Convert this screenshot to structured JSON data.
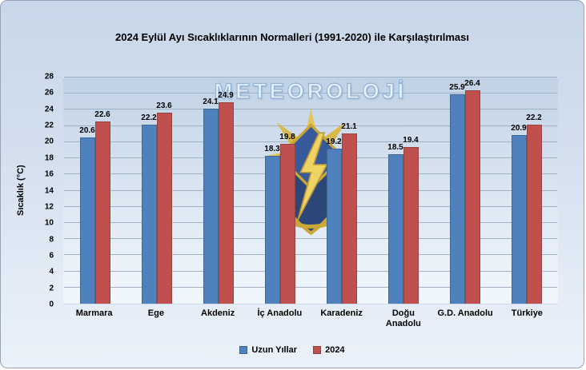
{
  "watermark": "METEOROLOJİ",
  "chart_data": {
    "type": "bar",
    "title": "2024 Eylül Ayı Sıcaklıklarının Normalleri (1991-2020) ile Karşılaştırılması",
    "xlabel": "",
    "ylabel": "Sıcaklık (°C)",
    "ylim": [
      0,
      28
    ],
    "ytick_step": 2,
    "grid": true,
    "legend_position": "bottom",
    "categories": [
      "Marmara",
      "Ege",
      "Akdeniz",
      "İç Anadolu",
      "Karadeniz",
      "Doğu Anadolu",
      "G.D. Anadolu",
      "Türkiye"
    ],
    "series": [
      {
        "name": "Uzun Yıllar",
        "color": "#4f81bd",
        "values": [
          20.6,
          22.2,
          24.1,
          18.3,
          19.2,
          18.5,
          25.9,
          20.9
        ]
      },
      {
        "name": "2024",
        "color": "#c0504d",
        "values": [
          22.6,
          23.6,
          24.9,
          19.8,
          21.1,
          19.4,
          26.4,
          22.2
        ]
      }
    ]
  }
}
